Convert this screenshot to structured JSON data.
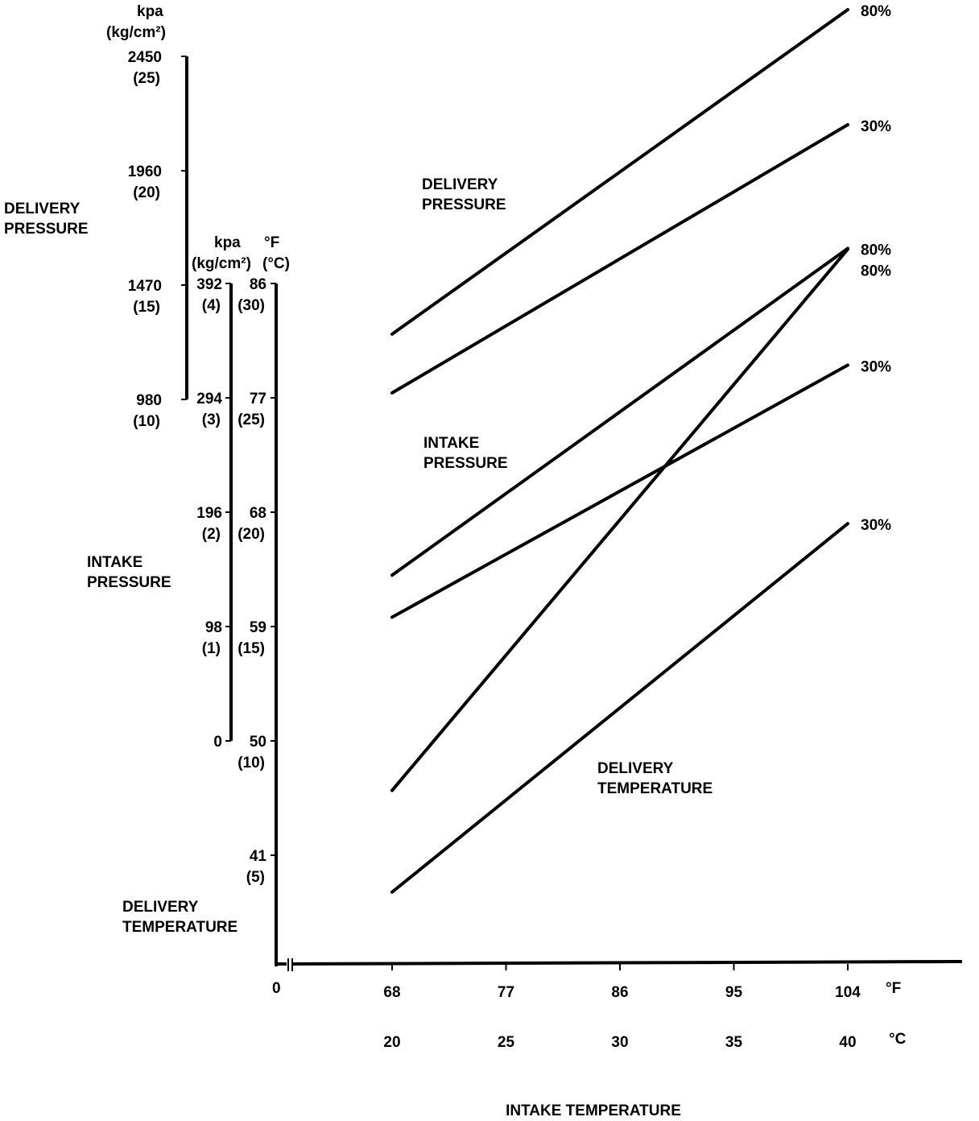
{
  "chart_data": {
    "type": "line",
    "title": "",
    "xlabel": "INTAKE TEMPERATURE",
    "x_axis": {
      "ticks_f": [
        "68",
        "77",
        "86",
        "95",
        "104"
      ],
      "ticks_c": [
        "20",
        "25",
        "30",
        "35",
        "40"
      ],
      "unit_f": "°F",
      "unit_c": "°C",
      "origin_label": "0",
      "xlim_f": [
        68,
        104
      ]
    },
    "y_axes": [
      {
        "id": "delivery_pressure",
        "label": [
          "DELIVERY",
          "PRESSURE"
        ],
        "unit": [
          "kpa",
          "(kg/cm²)"
        ],
        "ticks": [
          {
            "v": 2450,
            "sub": "(25)"
          },
          {
            "v": 1960,
            "sub": "(20)"
          },
          {
            "v": 1470,
            "sub": "(15)"
          },
          {
            "v": 980,
            "sub": "(10)"
          }
        ],
        "ylim": [
          980,
          2450
        ]
      },
      {
        "id": "intake_pressure",
        "label": [
          "INTAKE",
          "PRESSURE"
        ],
        "unit": [
          "kpa",
          "(kg/cm²)"
        ],
        "ticks": [
          {
            "v": 392,
            "sub": "(4)"
          },
          {
            "v": 294,
            "sub": "(3)"
          },
          {
            "v": 196,
            "sub": "(2)"
          },
          {
            "v": 98,
            "sub": "(1)"
          },
          {
            "v": 0,
            "sub": ""
          }
        ],
        "ylim": [
          0,
          392
        ]
      },
      {
        "id": "delivery_temperature",
        "label": [
          "DELIVERY",
          "TEMPERATURE"
        ],
        "unit": [
          "°F",
          "(°C)"
        ],
        "ticks": [
          {
            "v": 86,
            "sub": "(30)"
          },
          {
            "v": 77,
            "sub": "(25)"
          },
          {
            "v": 68,
            "sub": "(20)"
          },
          {
            "v": 59,
            "sub": "(15)"
          },
          {
            "v": 50,
            "sub": "(10)"
          },
          {
            "v": 41,
            "sub": "(5)"
          }
        ],
        "ylim": [
          41,
          86
        ]
      }
    ],
    "series": [
      {
        "name": "80%",
        "axis": "delivery_pressure",
        "x": [
          68,
          104
        ],
        "y": [
          1260,
          2650
        ]
      },
      {
        "name": "30%",
        "axis": "delivery_pressure",
        "x": [
          68,
          104
        ],
        "y": [
          1008,
          2157
        ]
      },
      {
        "name": "80%",
        "axis": "intake_pressure",
        "x": [
          68,
          104
        ],
        "y": [
          142,
          422
        ]
      },
      {
        "name": "30%",
        "axis": "intake_pressure",
        "x": [
          68,
          104
        ],
        "y": [
          106,
          322
        ]
      },
      {
        "name": "80%",
        "axis": "delivery_temperature",
        "x": [
          68,
          104
        ],
        "y": [
          46.1,
          88.7
        ]
      },
      {
        "name": "30%",
        "axis": "delivery_temperature",
        "x": [
          68,
          104
        ],
        "y": [
          38.1,
          67.1
        ]
      }
    ],
    "annotations": [
      {
        "id": "delivery_pressure",
        "text": [
          "DELIVERY",
          "PRESSURE"
        ]
      },
      {
        "id": "intake_pressure",
        "text": [
          "INTAKE",
          "PRESSURE"
        ]
      },
      {
        "id": "delivery_temperature",
        "text": [
          "DELIVERY",
          "TEMPERATURE"
        ]
      }
    ],
    "grid": false,
    "legend": "none"
  }
}
